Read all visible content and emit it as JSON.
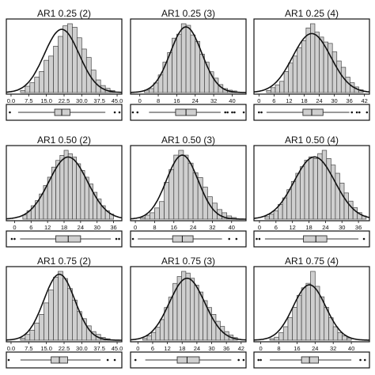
{
  "chart_data": [
    {
      "type": "bar",
      "title": "AR1 0.25 (2)",
      "x_ticks": [
        "0.0",
        "7.5",
        "15.0",
        "22.5",
        "30.0",
        "37.5",
        "45.0"
      ],
      "xlim": [
        -2,
        47
      ],
      "bin_start": 4,
      "bin_width": 2,
      "counts": [
        3,
        9,
        14,
        22,
        30,
        46,
        52,
        66,
        80,
        95,
        98,
        93,
        78,
        62,
        50,
        32,
        18,
        10,
        6,
        3
      ],
      "curve": {
        "mean": 21.5,
        "sd": 7.4,
        "peak": 90
      },
      "box": {
        "min": 3,
        "q1": 18.5,
        "median": 21.5,
        "q3": 25,
        "max": 40,
        "outliers": [
          -0.5,
          44,
          46
        ]
      }
    },
    {
      "type": "bar",
      "title": "AR1 0.25 (3)",
      "x_ticks": [
        "0",
        "8",
        "16",
        "24",
        "32",
        "40"
      ],
      "xlim": [
        -4,
        46
      ],
      "bin_start": 2,
      "bin_width": 2,
      "counts": [
        3,
        5,
        12,
        22,
        38,
        50,
        68,
        73,
        86,
        84,
        72,
        64,
        48,
        38,
        26,
        18,
        10,
        5,
        3,
        2
      ],
      "curve": {
        "mean": 20,
        "sd": 6.8,
        "peak": 82
      },
      "box": {
        "min": 4,
        "q1": 15.5,
        "median": 20,
        "q3": 24.5,
        "max": 35,
        "outliers": [
          -3,
          -1,
          37,
          38,
          40,
          41,
          45
        ]
      }
    },
    {
      "type": "bar",
      "title": "AR1 0.25 (4)",
      "x_ticks": [
        "0",
        "6",
        "12",
        "18",
        "24",
        "30",
        "36",
        "42"
      ],
      "xlim": [
        -2,
        44
      ],
      "bin_start": 3,
      "bin_width": 1.75,
      "counts": [
        3,
        7,
        11,
        16,
        30,
        42,
        52,
        64,
        74,
        92,
        98,
        86,
        79,
        72,
        70,
        58,
        45,
        36,
        22,
        14,
        8,
        4
      ],
      "curve": {
        "mean": 21,
        "sd": 7.6,
        "peak": 84
      },
      "box": {
        "min": 3,
        "q1": 17.5,
        "median": 21,
        "q3": 25.5,
        "max": 36,
        "outliers": [
          0,
          1,
          37,
          39,
          40,
          43
        ]
      }
    },
    {
      "type": "bar",
      "title": "AR1 0.50 (2)",
      "x_ticks": [
        "0",
        "6",
        "12",
        "18",
        "24",
        "30",
        "36"
      ],
      "xlim": [
        -3,
        39
      ],
      "bin_start": 3,
      "bin_width": 1.5,
      "counts": [
        5,
        10,
        16,
        22,
        30,
        40,
        50,
        62,
        70,
        76,
        82,
        78,
        74,
        66,
        58,
        50,
        42,
        32,
        24,
        16,
        10,
        6
      ],
      "curve": {
        "mean": 19.5,
        "sd": 7,
        "peak": 74
      },
      "box": {
        "min": 2,
        "q1": 15,
        "median": 19.5,
        "q3": 24,
        "max": 35,
        "outliers": [
          -1,
          0,
          37,
          38
        ]
      }
    },
    {
      "type": "bar",
      "title": "AR1 0.50 (3)",
      "x_ticks": [
        "0",
        "8",
        "16",
        "24",
        "32",
        "40"
      ],
      "xlim": [
        -2,
        46
      ],
      "bin_start": 2,
      "bin_width": 2,
      "counts": [
        2,
        5,
        8,
        14,
        22,
        46,
        62,
        80,
        86,
        80,
        70,
        58,
        52,
        40,
        28,
        20,
        12,
        8,
        4,
        2
      ],
      "curve": {
        "mean": 19.5,
        "sd": 6.6,
        "peak": 80
      },
      "box": {
        "min": 1,
        "q1": 15.5,
        "median": 19.5,
        "q3": 24,
        "max": 36,
        "outliers": [
          -1,
          39,
          42
        ]
      }
    },
    {
      "type": "bar",
      "title": "AR1 0.50 (4)",
      "x_ticks": [
        "0",
        "6",
        "12",
        "18",
        "24",
        "30",
        "36"
      ],
      "xlim": [
        -2,
        40
      ],
      "bin_start": 2,
      "bin_width": 1.6,
      "counts": [
        3,
        6,
        10,
        18,
        26,
        36,
        46,
        56,
        64,
        72,
        76,
        74,
        80,
        84,
        74,
        66,
        56,
        44,
        32,
        22,
        14,
        8,
        4
      ],
      "curve": {
        "mean": 20,
        "sd": 7.4,
        "peak": 76
      },
      "box": {
        "min": 2,
        "q1": 16,
        "median": 20.5,
        "q3": 24.5,
        "max": 36,
        "outliers": [
          -1,
          0,
          38
        ]
      }
    },
    {
      "type": "bar",
      "title": "AR1 0.75 (2)",
      "x_ticks": [
        "0.0",
        "7.5",
        "15.0",
        "22.5",
        "30.0",
        "37.5",
        "45.0"
      ],
      "xlim": [
        -2,
        47
      ],
      "bin_start": 4,
      "bin_width": 2,
      "counts": [
        3,
        8,
        14,
        24,
        36,
        52,
        70,
        88,
        96,
        86,
        72,
        56,
        40,
        30,
        20,
        12,
        8,
        4,
        2
      ],
      "curve": {
        "mean": 20.5,
        "sd": 6.6,
        "peak": 92
      },
      "box": {
        "min": 4,
        "q1": 17,
        "median": 20.5,
        "q3": 24,
        "max": 38,
        "outliers": [
          -1,
          41,
          44
        ]
      }
    },
    {
      "type": "bar",
      "title": "AR1 0.75 (3)",
      "x_ticks": [
        "0",
        "6",
        "12",
        "18",
        "24",
        "30",
        "36",
        "42"
      ],
      "xlim": [
        -3,
        44
      ],
      "bin_start": 2,
      "bin_width": 1.75,
      "counts": [
        2,
        5,
        9,
        15,
        24,
        38,
        50,
        66,
        74,
        80,
        78,
        72,
        64,
        56,
        46,
        38,
        30,
        22,
        16,
        10,
        6,
        3
      ],
      "curve": {
        "mean": 20,
        "sd": 7.2,
        "peak": 72
      },
      "box": {
        "min": 3,
        "q1": 16,
        "median": 20,
        "q3": 25,
        "max": 38,
        "outliers": [
          -1,
          41,
          43
        ]
      }
    },
    {
      "type": "bar",
      "title": "AR1 0.75 (4)",
      "x_ticks": [
        "0",
        "8",
        "16",
        "24",
        "32",
        "40"
      ],
      "xlim": [
        -3,
        48
      ],
      "bin_start": 4,
      "bin_width": 2,
      "counts": [
        2,
        4,
        10,
        18,
        30,
        44,
        60,
        70,
        76,
        92,
        72,
        58,
        44,
        30,
        18,
        10,
        6,
        3
      ],
      "curve": {
        "mean": 21.5,
        "sd": 7.2,
        "peak": 74
      },
      "box": {
        "min": 4,
        "q1": 18,
        "median": 21.5,
        "q3": 25.5,
        "max": 40,
        "outliers": [
          -1,
          0,
          44,
          46
        ]
      }
    }
  ]
}
